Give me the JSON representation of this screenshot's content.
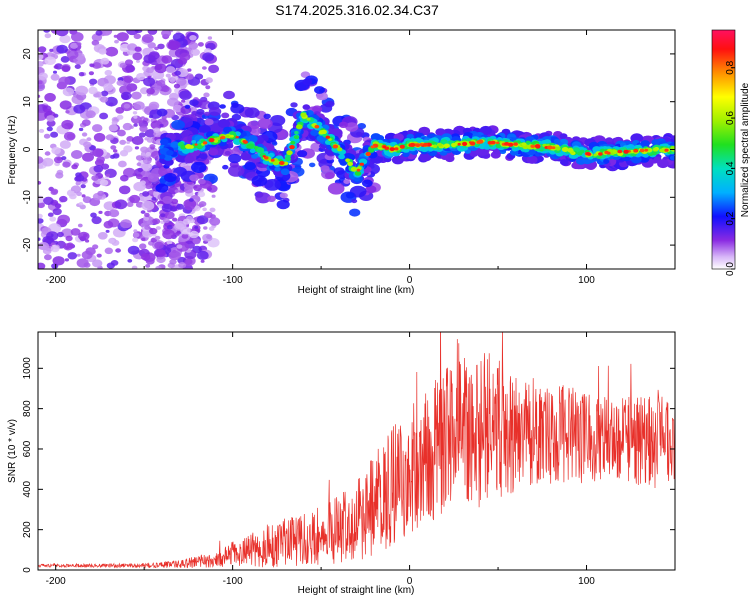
{
  "title": "S174.2025.316.02.34.C37",
  "chart_data": [
    {
      "type": "heatmap",
      "xlabel": "Height of straight line (km)",
      "ylabel": "Frequency (Hz)",
      "xlim": [
        -210,
        150
      ],
      "ylim": [
        -25,
        25
      ],
      "xticks": [
        -200,
        -100,
        0,
        100
      ],
      "xtick_labels": [
        "-200",
        "-100",
        "0",
        "100"
      ],
      "yticks": [
        -20,
        -10,
        0,
        10,
        20
      ],
      "ytick_labels": [
        "-20",
        "-10",
        "0",
        "10",
        "20"
      ],
      "colorbar": {
        "label": "Normalized spectral amplitude",
        "range": [
          0,
          0.95
        ],
        "ticks": [
          0,
          0.2,
          0.4,
          0.6,
          0.8
        ],
        "tick_labels": [
          "0.0",
          "0.2",
          "0.4",
          "0.6",
          "0.8"
        ],
        "colormap": "rainbow"
      },
      "ridge": {
        "x": [
          -140,
          -120,
          -100,
          -90,
          -80,
          -70,
          -60,
          -50,
          -40,
          -30,
          -20,
          -10,
          0,
          20,
          40,
          60,
          80,
          100,
          120,
          150
        ],
        "freq": [
          0,
          1,
          3,
          1,
          -2,
          -3,
          7,
          4,
          0,
          -5,
          1,
          0,
          1,
          1,
          1.5,
          1,
          0.5,
          -1,
          -0.5,
          0
        ]
      }
    },
    {
      "type": "line",
      "xlabel": "Height of straight line (km)",
      "ylabel": "SNR (10 * v/v)",
      "xlim": [
        -210,
        150
      ],
      "ylim": [
        0,
        1180
      ],
      "xticks": [
        -200,
        -100,
        0,
        100
      ],
      "xtick_labels": [
        "-200",
        "-100",
        "0",
        "100"
      ],
      "yticks": [
        0,
        200,
        400,
        600,
        800,
        1000
      ],
      "ytick_labels": [
        "0",
        "200",
        "400",
        "600",
        "800",
        "1000"
      ],
      "series": [
        {
          "name": "SNR",
          "color": "#e8302a",
          "envelope_x": [
            -210,
            -150,
            -130,
            -110,
            -100,
            -90,
            -80,
            -70,
            -60,
            -50,
            -40,
            -30,
            -20,
            -10,
            0,
            10,
            20,
            30,
            40,
            50,
            60,
            80,
            100,
            120,
            140,
            150
          ],
          "envelope_mean": [
            22,
            22,
            30,
            50,
            80,
            100,
            120,
            140,
            150,
            170,
            200,
            240,
            320,
            420,
            500,
            560,
            640,
            680,
            700,
            700,
            690,
            680,
            660,
            650,
            640,
            650
          ],
          "envelope_amp": [
            8,
            10,
            20,
            40,
            60,
            80,
            110,
            120,
            130,
            150,
            170,
            200,
            250,
            300,
            320,
            340,
            360,
            380,
            400,
            360,
            300,
            260,
            230,
            220,
            240,
            200
          ]
        }
      ]
    }
  ]
}
